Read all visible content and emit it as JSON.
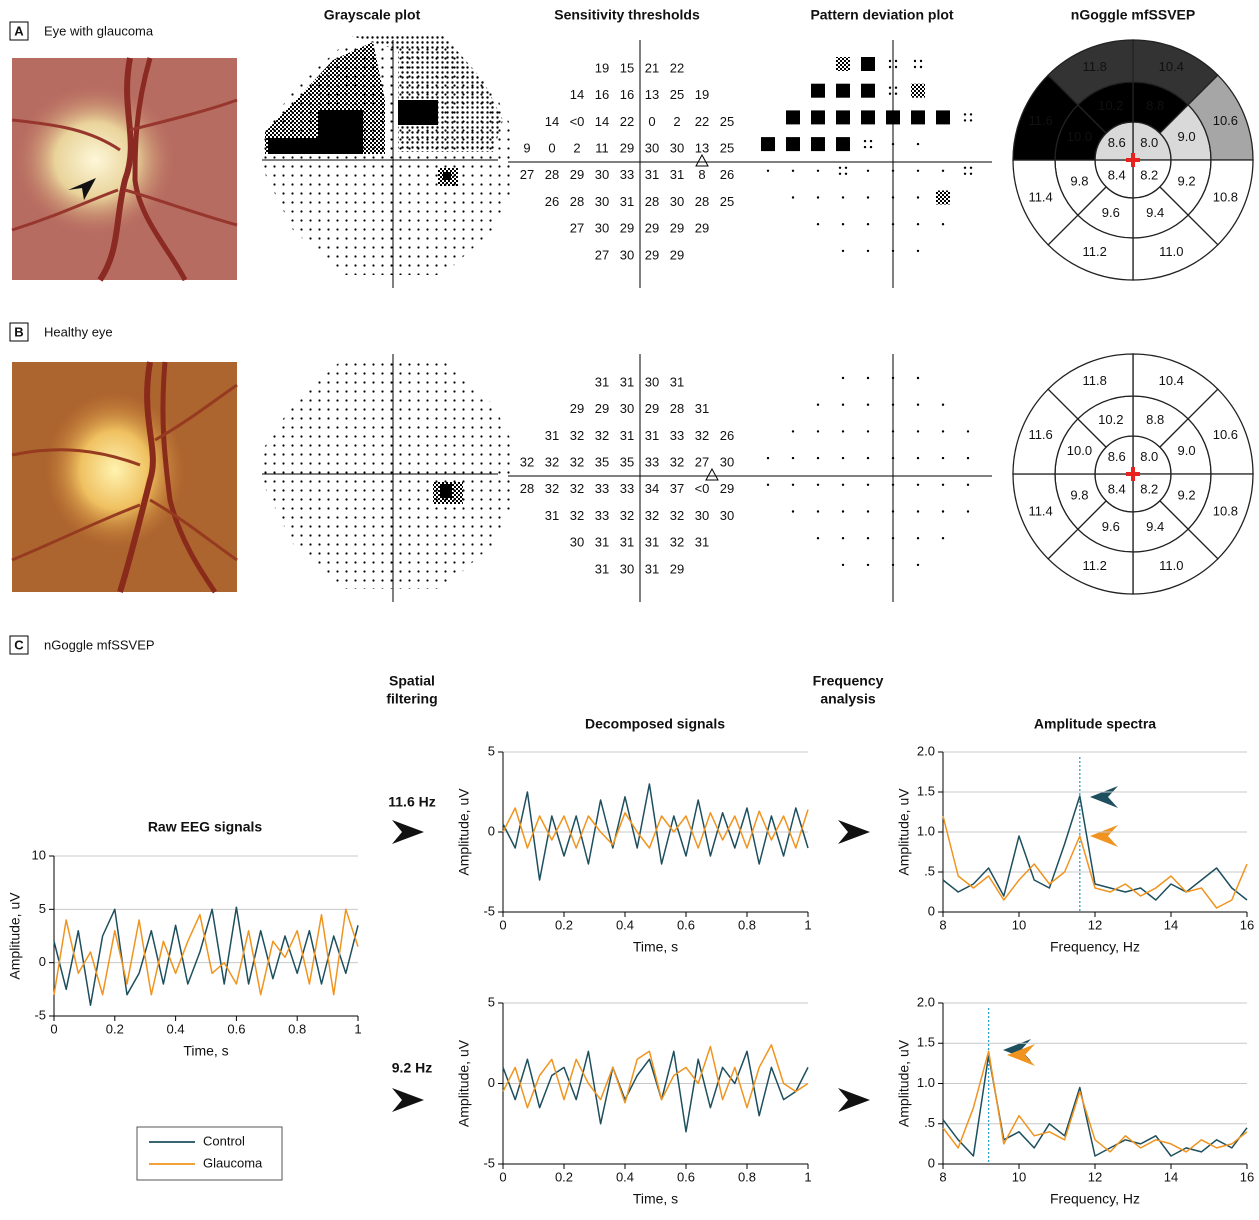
{
  "panel_a": {
    "letter": "A",
    "title": "Eye with glaucoma"
  },
  "panel_b": {
    "letter": "B",
    "title": "Healthy eye"
  },
  "panel_c": {
    "letter": "C",
    "title": "nGoggle mfSSVEP"
  },
  "column_headers": [
    "Grayscale plot",
    "Sensitivity thresholds",
    "Pattern deviation plot",
    "nGoggle mfSSVEP"
  ],
  "sensitivity": {
    "glaucoma": [
      [
        "19",
        "15",
        "21",
        "22"
      ],
      [
        "14",
        "16",
        "16",
        "13",
        "25",
        "19"
      ],
      [
        "14",
        "<0",
        "14",
        "22",
        "0",
        "2",
        "22",
        "25"
      ],
      [
        "9",
        "0",
        "2",
        "11",
        "29",
        "30",
        "30",
        "13",
        "25"
      ],
      [
        "27",
        "28",
        "29",
        "30",
        "33",
        "31",
        "31",
        "8",
        "26"
      ],
      [
        "26",
        "28",
        "30",
        "31",
        "28",
        "30",
        "28",
        "25"
      ],
      [
        "27",
        "30",
        "29",
        "29",
        "29",
        "29"
      ],
      [
        "27",
        "30",
        "29",
        "29"
      ]
    ],
    "healthy": [
      [
        "31",
        "31",
        "30",
        "31"
      ],
      [
        "29",
        "29",
        "30",
        "29",
        "28",
        "31"
      ],
      [
        "31",
        "32",
        "32",
        "31",
        "31",
        "33",
        "32",
        "26"
      ],
      [
        "32",
        "32",
        "32",
        "35",
        "35",
        "33",
        "32",
        "27",
        "30"
      ],
      [
        "28",
        "32",
        "32",
        "33",
        "33",
        "34",
        "37",
        "<0",
        "29"
      ],
      [
        "31",
        "32",
        "33",
        "32",
        "32",
        "32",
        "30",
        "30"
      ],
      [
        "30",
        "31",
        "31",
        "31",
        "32",
        "31"
      ],
      [
        "31",
        "30",
        "31",
        "29"
      ]
    ]
  },
  "wheel": {
    "glaucoma": {
      "center": [
        "8.0",
        "8.2",
        "8.4",
        "8.6"
      ],
      "middle": [
        "8.8",
        "9.0",
        "9.2",
        "9.4",
        "9.6",
        "9.8",
        "10.0",
        "10.2"
      ],
      "outer": [
        "10.4",
        "10.6",
        "10.8",
        "11.0",
        "11.2",
        "11.4",
        "11.6",
        "11.8"
      ],
      "center_fills": [
        "#d9d9d9",
        "#ffffff",
        "#ffffff",
        "#d9d9d9"
      ],
      "middle_fills": [
        "#000000",
        "#d9d9d9",
        "#ffffff",
        "#ffffff",
        "#ffffff",
        "#ffffff",
        "#000000",
        "#000000"
      ],
      "outer_fills": [
        "#333333",
        "#a6a6a6",
        "#ffffff",
        "#ffffff",
        "#ffffff",
        "#ffffff",
        "#000000",
        "#333333"
      ]
    },
    "healthy": {
      "center": [
        "8.0",
        "8.2",
        "8.4",
        "8.6"
      ],
      "middle": [
        "8.8",
        "9.0",
        "9.2",
        "9.4",
        "9.6",
        "9.8",
        "10.0",
        "10.2"
      ],
      "outer": [
        "10.4",
        "10.6",
        "10.8",
        "11.0",
        "11.2",
        "11.4",
        "11.6",
        "11.8"
      ]
    }
  },
  "flow": {
    "spatial": [
      "Spatial",
      "filtering"
    ],
    "frequency": [
      "Frequency",
      "analysis"
    ],
    "bands": [
      "11.6 Hz",
      "9.2 Hz"
    ]
  },
  "chart_data": [
    {
      "type": "line",
      "title": "Raw EEG signals",
      "x_label": "Time, s",
      "y_label": "Amplitude, uV",
      "x": [
        0,
        0.04,
        0.08,
        0.12,
        0.16,
        0.2,
        0.24,
        0.28,
        0.32,
        0.36,
        0.4,
        0.44,
        0.48,
        0.52,
        0.56,
        0.6,
        0.64,
        0.68,
        0.72,
        0.76,
        0.8,
        0.84,
        0.88,
        0.92,
        0.96,
        1
      ],
      "xlim": [
        0,
        1
      ],
      "xticks": [
        0,
        0.2,
        0.4,
        0.6,
        0.8,
        1
      ],
      "ylim": [
        -5,
        10
      ],
      "yticks": [
        -5,
        0,
        5,
        10
      ],
      "grid": true,
      "series": [
        {
          "name": "Control",
          "color": "#1d4f5e",
          "values": [
            2,
            -2.5,
            3,
            -4,
            2.5,
            5,
            -3,
            -1,
            3,
            -2,
            3.5,
            -2,
            1,
            5,
            -2,
            5.2,
            -2,
            3,
            -1.5,
            2.5,
            -1,
            3,
            -2,
            2.5,
            -1,
            3.5
          ]
        },
        {
          "name": "Glaucoma",
          "color": "#f0941f",
          "values": [
            -3,
            4,
            -1,
            1,
            -3,
            3,
            -2,
            4,
            -3,
            2,
            -1,
            2,
            4.5,
            -1,
            0,
            -2,
            3,
            -3,
            2,
            0.5,
            3,
            -2,
            4.5,
            -3,
            5,
            1.5
          ]
        }
      ]
    },
    {
      "type": "line",
      "title": "Decomposed signals",
      "x_label": "Time, s",
      "y_label": "Amplitude, uV",
      "x": [
        0,
        0.04,
        0.08,
        0.12,
        0.16,
        0.2,
        0.24,
        0.28,
        0.32,
        0.36,
        0.4,
        0.44,
        0.48,
        0.52,
        0.56,
        0.6,
        0.64,
        0.68,
        0.72,
        0.76,
        0.8,
        0.84,
        0.88,
        0.92,
        0.96,
        1
      ],
      "xlim": [
        0,
        1
      ],
      "xticks": [
        0,
        0.2,
        0.4,
        0.6,
        0.8,
        1
      ],
      "ylim": [
        -5,
        5
      ],
      "yticks": [
        -5,
        0,
        5
      ],
      "grid": true,
      "series": [
        {
          "color": "#1d4f5e",
          "values": [
            0.5,
            -1,
            2.5,
            -3,
            1,
            -1.5,
            1,
            -2,
            2,
            -1,
            2.2,
            -1,
            3,
            -2,
            1,
            -1.5,
            2,
            -1.5,
            1.2,
            -1,
            1.5,
            -2,
            1,
            -1.5,
            1.5,
            -1
          ]
        },
        {
          "color": "#f0941f",
          "values": [
            0,
            1.5,
            -1,
            1,
            -0.5,
            1,
            -1,
            1,
            0,
            -0.8,
            1.2,
            0,
            -1,
            1,
            0,
            1,
            -1,
            1.2,
            -0.5,
            1,
            -1,
            1.3,
            -0.5,
            1,
            -1,
            1.4
          ]
        }
      ]
    },
    {
      "type": "line",
      "x_label": "Time, s",
      "y_label": "Amplitude, uV",
      "x": [
        0,
        0.04,
        0.08,
        0.12,
        0.16,
        0.2,
        0.24,
        0.28,
        0.32,
        0.36,
        0.4,
        0.44,
        0.48,
        0.52,
        0.56,
        0.6,
        0.64,
        0.68,
        0.72,
        0.76,
        0.8,
        0.84,
        0.88,
        0.92,
        0.96,
        1
      ],
      "xlim": [
        0,
        1
      ],
      "xticks": [
        0,
        0.2,
        0.4,
        0.6,
        0.8,
        1
      ],
      "ylim": [
        -5,
        5
      ],
      "yticks": [
        -5,
        0,
        5
      ],
      "grid": true,
      "series": [
        {
          "color": "#1d4f5e",
          "values": [
            1,
            -1,
            1.5,
            -1.5,
            0.5,
            1,
            -1,
            2,
            -2.5,
            1,
            -1,
            0.5,
            1.5,
            -1,
            2,
            -3,
            1.5,
            -1.5,
            1,
            0,
            2,
            -2,
            1,
            -1,
            -0.5,
            1
          ]
        },
        {
          "color": "#f0941f",
          "values": [
            -0.5,
            1,
            -1.5,
            0.5,
            1.5,
            -1,
            1.5,
            0,
            -1,
            1,
            -1.2,
            1.5,
            2,
            -1,
            0.5,
            1,
            0,
            2.3,
            -1,
            1,
            -1.5,
            1,
            2.4,
            0,
            -0.5,
            0
          ]
        }
      ]
    },
    {
      "type": "line",
      "title": "Amplitude spectra",
      "x_label": "Frequency, Hz",
      "y_label": "Amplitude, uV",
      "x": [
        8,
        8.4,
        8.8,
        9.2,
        9.6,
        10,
        10.4,
        10.8,
        11.2,
        11.6,
        12,
        12.4,
        12.8,
        13.2,
        13.6,
        14,
        14.4,
        14.8,
        15.2,
        15.6,
        16
      ],
      "xlim": [
        8,
        16
      ],
      "xticks": [
        8,
        10,
        12,
        14,
        16
      ],
      "ylim": [
        0,
        2
      ],
      "yticks": [
        0,
        {
          "value": 0.5,
          "label": ".5"
        },
        {
          "value": 1,
          "label": "1.0"
        },
        1.5,
        {
          "value": 2,
          "label": "2.0"
        }
      ],
      "grid": true,
      "marker_x": 11.6,
      "series": [
        {
          "color": "#1d4f5e",
          "values": [
            0.4,
            0.25,
            0.35,
            0.55,
            0.2,
            0.95,
            0.4,
            0.3,
            0.85,
            1.45,
            0.35,
            0.3,
            0.25,
            0.3,
            0.15,
            0.35,
            0.25,
            0.4,
            0.55,
            0.3,
            0.15
          ]
        },
        {
          "color": "#f0941f",
          "values": [
            1.2,
            0.45,
            0.3,
            0.45,
            0.15,
            0.4,
            0.6,
            0.35,
            0.5,
            0.95,
            0.3,
            0.25,
            0.35,
            0.2,
            0.3,
            0.45,
            0.25,
            0.3,
            0.05,
            0.15,
            0.6
          ]
        }
      ]
    },
    {
      "type": "line",
      "x_label": "Frequency, Hz",
      "y_label": "Amplitude, uV",
      "x": [
        8,
        8.4,
        8.8,
        9.2,
        9.6,
        10,
        10.4,
        10.8,
        11.2,
        11.6,
        12,
        12.4,
        12.8,
        13.2,
        13.6,
        14,
        14.4,
        14.8,
        15.2,
        15.6,
        16
      ],
      "xlim": [
        8,
        16
      ],
      "xticks": [
        8,
        10,
        12,
        14,
        16
      ],
      "ylim": [
        0,
        2
      ],
      "yticks": [
        0,
        {
          "value": 0.5,
          "label": ".5"
        },
        {
          "value": 1,
          "label": "1.0"
        },
        1.5,
        {
          "value": 2,
          "label": "2.0"
        }
      ],
      "grid": true,
      "marker_x": 9.2,
      "series": [
        {
          "color": "#1d4f5e",
          "values": [
            0.55,
            0.3,
            0.1,
            1.35,
            0.3,
            0.4,
            0.2,
            0.5,
            0.35,
            0.95,
            0.1,
            0.2,
            0.3,
            0.25,
            0.35,
            0.1,
            0.2,
            0.15,
            0.3,
            0.2,
            0.45
          ]
        },
        {
          "color": "#f0941f",
          "values": [
            0.45,
            0.2,
            0.7,
            1.4,
            0.25,
            0.6,
            0.35,
            0.4,
            0.3,
            0.9,
            0.3,
            0.15,
            0.35,
            0.2,
            0.3,
            0.25,
            0.15,
            0.3,
            0.2,
            0.25,
            0.4
          ]
        }
      ]
    }
  ]
}
